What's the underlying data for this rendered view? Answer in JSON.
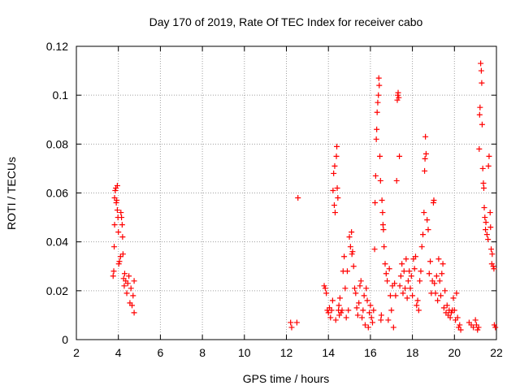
{
  "chart_data": {
    "type": "scatter",
    "title": "Day 170 of 2019, Rate Of TEC Index for receiver cabo",
    "xlabel": "GPS time / hours",
    "ylabel": "ROTI / TECUs",
    "xlim": [
      2,
      22
    ],
    "ylim": [
      0,
      0.12
    ],
    "x_ticks": [
      2,
      4,
      6,
      8,
      10,
      12,
      14,
      16,
      18,
      20,
      22
    ],
    "y_ticks": [
      0,
      0.02,
      0.04,
      0.06,
      0.08,
      0.1,
      0.12
    ],
    "x_tick_labels": [
      "2",
      "4",
      "6",
      "8",
      "10",
      "12",
      "14",
      "16",
      "18",
      "20",
      "22"
    ],
    "y_tick_labels": [
      "0",
      "0.02",
      "0.04",
      "0.06",
      "0.08",
      "0.1",
      "0.12"
    ],
    "grid": true,
    "marker": "+",
    "series": [
      {
        "name": "ROTI",
        "color": "#ff0000",
        "points": [
          [
            3.75,
            0.026
          ],
          [
            3.78,
            0.028
          ],
          [
            3.8,
            0.038
          ],
          [
            3.82,
            0.047
          ],
          [
            3.82,
            0.058
          ],
          [
            3.85,
            0.061
          ],
          [
            3.88,
            0.062
          ],
          [
            3.9,
            0.056
          ],
          [
            3.92,
            0.057
          ],
          [
            3.95,
            0.063
          ],
          [
            3.95,
            0.053
          ],
          [
            3.98,
            0.05
          ],
          [
            4.0,
            0.044
          ],
          [
            4.02,
            0.031
          ],
          [
            4.05,
            0.032
          ],
          [
            4.1,
            0.034
          ],
          [
            4.12,
            0.052
          ],
          [
            4.15,
            0.05
          ],
          [
            4.18,
            0.047
          ],
          [
            4.2,
            0.042
          ],
          [
            4.22,
            0.035
          ],
          [
            4.25,
            0.025
          ],
          [
            4.28,
            0.022
          ],
          [
            4.3,
            0.027
          ],
          [
            4.35,
            0.024
          ],
          [
            4.4,
            0.019
          ],
          [
            4.45,
            0.023
          ],
          [
            4.5,
            0.026
          ],
          [
            4.55,
            0.015
          ],
          [
            4.6,
            0.021
          ],
          [
            4.65,
            0.014
          ],
          [
            4.7,
            0.018
          ],
          [
            4.75,
            0.011
          ],
          [
            4.75,
            0.024
          ],
          [
            12.2,
            0.007
          ],
          [
            12.25,
            0.005
          ],
          [
            12.5,
            0.007
          ],
          [
            12.55,
            0.058
          ],
          [
            13.8,
            0.022
          ],
          [
            13.85,
            0.021
          ],
          [
            13.9,
            0.019
          ],
          [
            13.95,
            0.012
          ],
          [
            14.0,
            0.011
          ],
          [
            14.05,
            0.013
          ],
          [
            14.1,
            0.009
          ],
          [
            14.15,
            0.012
          ],
          [
            14.2,
            0.016
          ],
          [
            14.22,
            0.061
          ],
          [
            14.25,
            0.068
          ],
          [
            14.28,
            0.055
          ],
          [
            14.3,
            0.071
          ],
          [
            14.32,
            0.052
          ],
          [
            14.35,
            0.008
          ],
          [
            14.38,
            0.075
          ],
          [
            14.4,
            0.079
          ],
          [
            14.42,
            0.062
          ],
          [
            14.45,
            0.058
          ],
          [
            14.48,
            0.012
          ],
          [
            14.5,
            0.014
          ],
          [
            14.52,
            0.01
          ],
          [
            14.55,
            0.017
          ],
          [
            14.6,
            0.011
          ],
          [
            14.65,
            0.012
          ],
          [
            14.7,
            0.028
          ],
          [
            14.75,
            0.034
          ],
          [
            14.8,
            0.021
          ],
          [
            14.85,
            0.009
          ],
          [
            14.9,
            0.028
          ],
          [
            14.95,
            0.012
          ],
          [
            15.0,
            0.042
          ],
          [
            15.05,
            0.038
          ],
          [
            15.1,
            0.044
          ],
          [
            15.12,
            0.035
          ],
          [
            15.15,
            0.036
          ],
          [
            15.2,
            0.03
          ],
          [
            15.25,
            0.021
          ],
          [
            15.3,
            0.019
          ],
          [
            15.35,
            0.013
          ],
          [
            15.4,
            0.01
          ],
          [
            15.45,
            0.015
          ],
          [
            15.5,
            0.022
          ],
          [
            15.55,
            0.024
          ],
          [
            15.6,
            0.009
          ],
          [
            15.65,
            0.012
          ],
          [
            15.7,
            0.018
          ],
          [
            15.75,
            0.006
          ],
          [
            15.8,
            0.021
          ],
          [
            15.85,
            0.016
          ],
          [
            15.9,
            0.005
          ],
          [
            15.95,
            0.011
          ],
          [
            16.0,
            0.014
          ],
          [
            16.05,
            0.009
          ],
          [
            16.1,
            0.007
          ],
          [
            16.15,
            0.012
          ],
          [
            16.2,
            0.037
          ],
          [
            16.22,
            0.056
          ],
          [
            16.25,
            0.067
          ],
          [
            16.28,
            0.082
          ],
          [
            16.3,
            0.086
          ],
          [
            16.32,
            0.093
          ],
          [
            16.35,
            0.097
          ],
          [
            16.38,
            0.1
          ],
          [
            16.4,
            0.107
          ],
          [
            16.42,
            0.104
          ],
          [
            16.45,
            0.075
          ],
          [
            16.48,
            0.065
          ],
          [
            16.5,
            0.008
          ],
          [
            16.52,
            0.01
          ],
          [
            16.55,
            0.057
          ],
          [
            16.58,
            0.052
          ],
          [
            16.6,
            0.047
          ],
          [
            16.62,
            0.045
          ],
          [
            16.65,
            0.038
          ],
          [
            16.7,
            0.031
          ],
          [
            16.75,
            0.027
          ],
          [
            16.8,
            0.024
          ],
          [
            16.85,
            0.008
          ],
          [
            16.9,
            0.029
          ],
          [
            16.95,
            0.018
          ],
          [
            17.0,
            0.012
          ],
          [
            17.05,
            0.022
          ],
          [
            17.1,
            0.005
          ],
          [
            17.15,
            0.023
          ],
          [
            17.2,
            0.018
          ],
          [
            17.25,
            0.065
          ],
          [
            17.28,
            0.098
          ],
          [
            17.3,
            0.1
          ],
          [
            17.32,
            0.101
          ],
          [
            17.35,
            0.099
          ],
          [
            17.38,
            0.075
          ],
          [
            17.4,
            0.022
          ],
          [
            17.45,
            0.026
          ],
          [
            17.5,
            0.031
          ],
          [
            17.55,
            0.019
          ],
          [
            17.6,
            0.028
          ],
          [
            17.65,
            0.021
          ],
          [
            17.7,
            0.033
          ],
          [
            17.75,
            0.017
          ],
          [
            17.8,
            0.024
          ],
          [
            17.85,
            0.028
          ],
          [
            17.9,
            0.021
          ],
          [
            17.95,
            0.026
          ],
          [
            18.0,
            0.018
          ],
          [
            18.05,
            0.033
          ],
          [
            18.1,
            0.029
          ],
          [
            18.15,
            0.034
          ],
          [
            18.2,
            0.014
          ],
          [
            18.25,
            0.016
          ],
          [
            18.3,
            0.012
          ],
          [
            18.35,
            0.024
          ],
          [
            18.4,
            0.028
          ],
          [
            18.45,
            0.038
          ],
          [
            18.5,
            0.043
          ],
          [
            18.55,
            0.052
          ],
          [
            18.58,
            0.069
          ],
          [
            18.6,
            0.074
          ],
          [
            18.62,
            0.083
          ],
          [
            18.65,
            0.076
          ],
          [
            18.7,
            0.049
          ],
          [
            18.75,
            0.045
          ],
          [
            18.8,
            0.027
          ],
          [
            18.85,
            0.032
          ],
          [
            18.9,
            0.019
          ],
          [
            18.95,
            0.024
          ],
          [
            19.0,
            0.056
          ],
          [
            19.02,
            0.057
          ],
          [
            19.05,
            0.023
          ],
          [
            19.1,
            0.019
          ],
          [
            19.15,
            0.026
          ],
          [
            19.2,
            0.016
          ],
          [
            19.25,
            0.033
          ],
          [
            19.3,
            0.024
          ],
          [
            19.35,
            0.018
          ],
          [
            19.4,
            0.027
          ],
          [
            19.45,
            0.031
          ],
          [
            19.5,
            0.013
          ],
          [
            19.55,
            0.02
          ],
          [
            19.6,
            0.011
          ],
          [
            19.65,
            0.014
          ],
          [
            19.7,
            0.01
          ],
          [
            19.75,
            0.012
          ],
          [
            19.8,
            0.009
          ],
          [
            19.85,
            0.011
          ],
          [
            19.9,
            0.012
          ],
          [
            19.95,
            0.017
          ],
          [
            20.0,
            0.012
          ],
          [
            20.05,
            0.008
          ],
          [
            20.1,
            0.019
          ],
          [
            20.15,
            0.009
          ],
          [
            20.2,
            0.005
          ],
          [
            20.25,
            0.006
          ],
          [
            20.3,
            0.004
          ],
          [
            20.7,
            0.007
          ],
          [
            20.8,
            0.006
          ],
          [
            20.9,
            0.005
          ],
          [
            21.0,
            0.008
          ],
          [
            21.05,
            0.006
          ],
          [
            21.1,
            0.004
          ],
          [
            21.15,
            0.005
          ],
          [
            21.18,
            0.078
          ],
          [
            21.2,
            0.092
          ],
          [
            21.22,
            0.095
          ],
          [
            21.25,
            0.113
          ],
          [
            21.28,
            0.11
          ],
          [
            21.3,
            0.105
          ],
          [
            21.32,
            0.088
          ],
          [
            21.35,
            0.07
          ],
          [
            21.38,
            0.064
          ],
          [
            21.4,
            0.062
          ],
          [
            21.42,
            0.054
          ],
          [
            21.45,
            0.05
          ],
          [
            21.48,
            0.045
          ],
          [
            21.5,
            0.048
          ],
          [
            21.55,
            0.043
          ],
          [
            21.6,
            0.041
          ],
          [
            21.62,
            0.071
          ],
          [
            21.65,
            0.075
          ],
          [
            21.7,
            0.052
          ],
          [
            21.72,
            0.046
          ],
          [
            21.75,
            0.037
          ],
          [
            21.78,
            0.031
          ],
          [
            21.8,
            0.035
          ],
          [
            21.85,
            0.03
          ],
          [
            21.88,
            0.029
          ],
          [
            21.9,
            0.006
          ],
          [
            21.95,
            0.005
          ]
        ]
      }
    ]
  }
}
